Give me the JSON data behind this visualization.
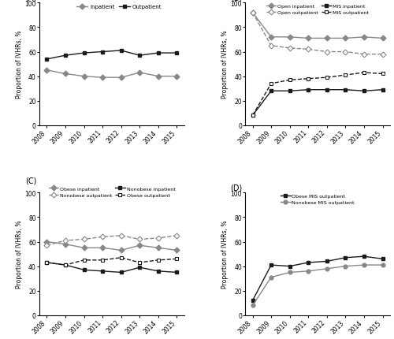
{
  "years": [
    2008,
    2009,
    2010,
    2011,
    2012,
    2013,
    2014,
    2015
  ],
  "A": {
    "inpatient": [
      45,
      42,
      40,
      39,
      39,
      43,
      40,
      40
    ],
    "outpatient": [
      54,
      57,
      59,
      60,
      61,
      57,
      59,
      59
    ]
  },
  "B": {
    "open_inpatient": [
      92,
      72,
      72,
      71,
      71,
      71,
      72,
      71
    ],
    "open_outpatient": [
      92,
      65,
      63,
      62,
      60,
      60,
      58,
      58
    ],
    "mis_inpatient": [
      8,
      28,
      28,
      29,
      29,
      29,
      28,
      29
    ],
    "mis_outpatient": [
      8,
      34,
      37,
      38,
      39,
      41,
      43,
      42
    ]
  },
  "C": {
    "obese_inpatient": [
      60,
      58,
      55,
      55,
      53,
      57,
      55,
      53
    ],
    "nonobese_outpatient": [
      57,
      61,
      62,
      64,
      65,
      62,
      63,
      65
    ],
    "nonobese_inpatient": [
      43,
      41,
      37,
      36,
      35,
      39,
      36,
      35
    ],
    "obese_outpatient": [
      43,
      41,
      45,
      45,
      47,
      43,
      45,
      46
    ]
  },
  "D": {
    "obese_mis_outpatient": [
      12,
      41,
      40,
      43,
      44,
      47,
      48,
      46
    ],
    "nonobese_mis_outpatient": [
      8,
      31,
      35,
      36,
      38,
      40,
      41,
      41
    ]
  },
  "gray": "#888888",
  "black": "#1a1a1a",
  "light_gray": "#aaaaaa"
}
